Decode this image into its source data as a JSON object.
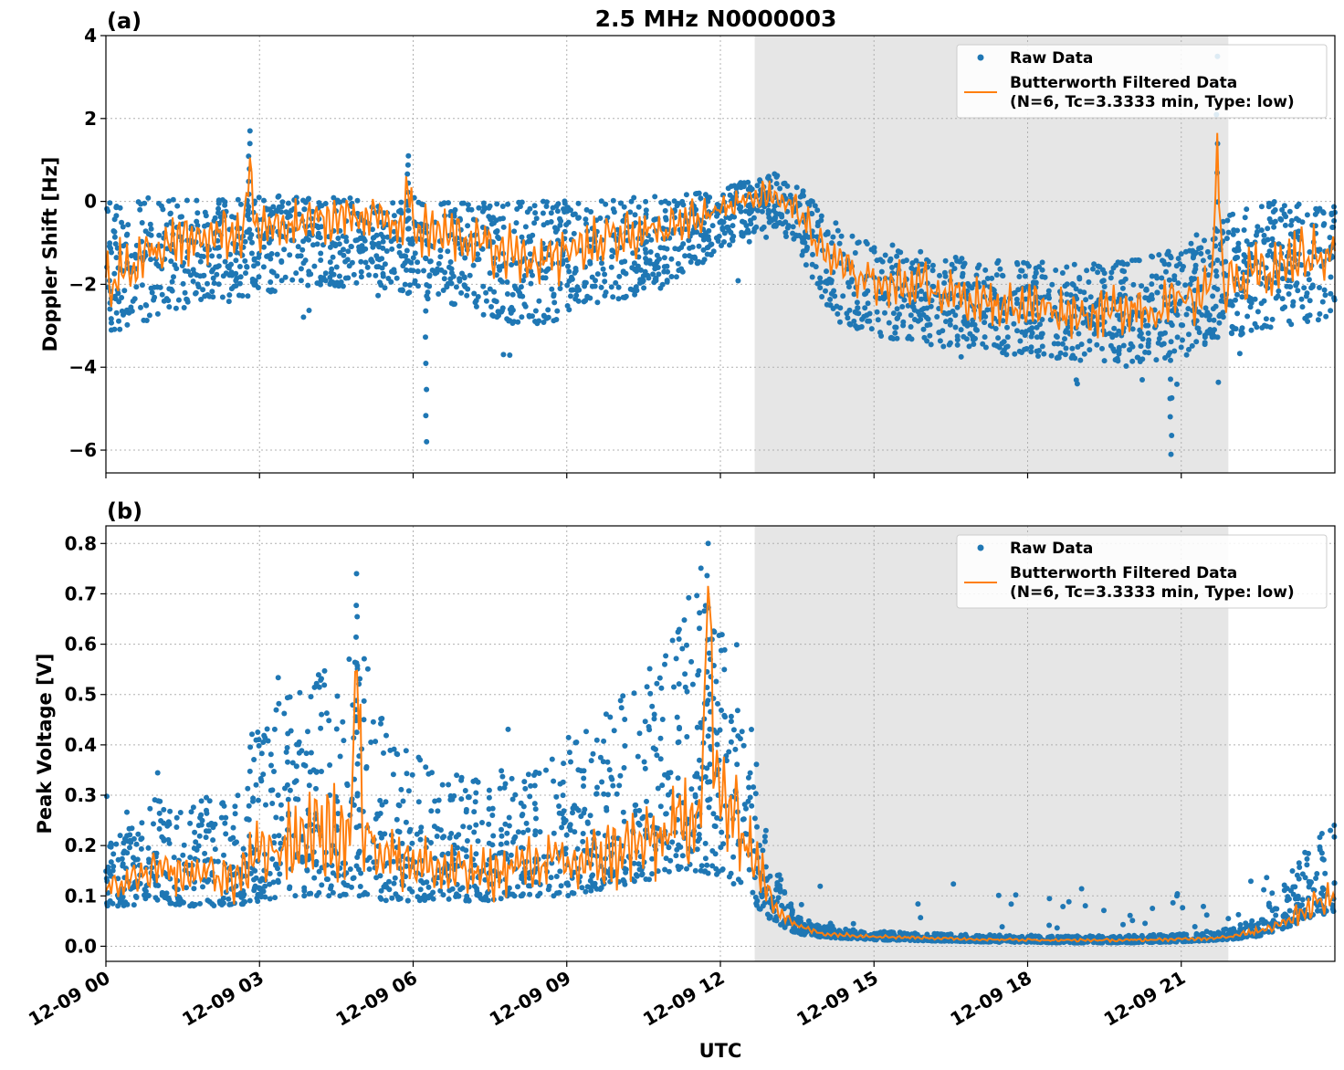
{
  "figure": {
    "title": "2.5 MHz N0000003",
    "xlabel": "UTC",
    "x_tick_labels": [
      "12-09 00",
      "12-09 03",
      "12-09 06",
      "12-09 09",
      "12-09 12",
      "12-09 15",
      "12-09 18",
      "12-09 21"
    ],
    "shaded_region_hours": [
      12.67,
      21.92
    ],
    "colors": {
      "raw": "#1f77b4",
      "filtered": "#ff7f0e",
      "shade": "#e6e6e6"
    }
  },
  "legend": {
    "raw_label": "Raw Data",
    "filtered_label_line1": "Butterworth Filtered Data",
    "filtered_label_line2": "(N=6, Tc=3.3333 min, Type: low)"
  },
  "chart_data": [
    {
      "type": "scatter",
      "panel_label": "(a)",
      "ylabel": "Doppler Shift [Hz]",
      "xlim_hours": [
        0,
        24
      ],
      "ylim": [
        -6.55,
        4.0
      ],
      "yticks": [
        4,
        2,
        0,
        -2,
        -4,
        -6
      ],
      "ytick_labels": [
        "4",
        "2",
        "0",
        "−2",
        "−4",
        "−6"
      ],
      "grid": true,
      "legend_position": "top-right",
      "series": [
        {
          "name": "Butterworth Filtered Data",
          "x_hours": [
            0,
            0.5,
            1,
            1.5,
            2,
            2.5,
            3,
            3.5,
            4,
            4.5,
            5,
            5.5,
            6,
            6.5,
            7,
            7.5,
            8,
            8.5,
            9,
            9.5,
            10,
            10.5,
            11,
            11.5,
            12,
            12.5,
            13,
            13.5,
            14,
            14.5,
            15,
            15.5,
            16,
            16.5,
            17,
            17.5,
            18,
            18.5,
            19,
            19.5,
            20,
            20.5,
            21,
            21.5,
            22,
            22.5,
            23,
            23.5,
            24
          ],
          "y_median": [
            -1.9,
            -1.5,
            -1.2,
            -1.0,
            -0.9,
            -0.8,
            -0.7,
            -0.6,
            -0.5,
            -0.4,
            -0.3,
            -0.5,
            -0.7,
            -0.8,
            -0.9,
            -1.1,
            -1.3,
            -1.4,
            -1.2,
            -1.1,
            -0.9,
            -0.8,
            -0.7,
            -0.3,
            -0.2,
            0.1,
            0.2,
            -0.2,
            -1.2,
            -1.7,
            -1.9,
            -2.0,
            -2.0,
            -2.2,
            -2.4,
            -2.5,
            -2.5,
            -2.6,
            -2.7,
            -2.7,
            -2.5,
            -2.6,
            -2.4,
            -2.2,
            -2.0,
            -1.8,
            -1.5,
            -1.3,
            -1.2
          ],
          "y_lower": [
            -3.2,
            -3.0,
            -2.8,
            -2.6,
            -2.5,
            -2.4,
            -2.3,
            -2.2,
            -2.1,
            -2.1,
            -2.0,
            -2.1,
            -2.3,
            -2.5,
            -2.6,
            -2.8,
            -3.0,
            -3.0,
            -2.8,
            -2.6,
            -2.4,
            -2.2,
            -2.0,
            -1.6,
            -1.2,
            -0.8,
            -0.6,
            -1.1,
            -2.4,
            -3.0,
            -3.2,
            -3.4,
            -3.5,
            -3.5,
            -3.6,
            -3.7,
            -3.7,
            -3.8,
            -3.9,
            -4.0,
            -4.0,
            -3.9,
            -3.8,
            -3.5,
            -3.3,
            -3.1,
            -3.0,
            -2.9,
            -2.8
          ],
          "y_upper": [
            0.05,
            0.05,
            0.1,
            0.1,
            0.1,
            0.1,
            0.15,
            0.15,
            0.1,
            0.1,
            0.1,
            0.1,
            0.1,
            0.05,
            0.05,
            0.0,
            0.0,
            0.05,
            0.05,
            0.05,
            0.1,
            0.1,
            0.15,
            0.2,
            0.3,
            0.5,
            0.7,
            0.4,
            -0.2,
            -0.7,
            -0.9,
            -1.1,
            -1.2,
            -1.3,
            -1.4,
            -1.4,
            -1.4,
            -1.5,
            -1.5,
            -1.5,
            -1.4,
            -1.3,
            -1.1,
            -0.6,
            -0.2,
            0.0,
            0.05,
            0.05,
            0.05
          ],
          "spikes": [
            {
              "x_hours": 2.8,
              "y": 1.7
            },
            {
              "x_hours": 5.9,
              "y": 1.1
            },
            {
              "x_hours": 21.7,
              "y": 3.5
            },
            {
              "x_hours": 6.25,
              "y": -5.8
            },
            {
              "x_hours": 20.8,
              "y": -6.1
            }
          ]
        }
      ]
    },
    {
      "type": "scatter",
      "panel_label": "(b)",
      "ylabel": "Peak Voltage [V]",
      "xlim_hours": [
        0,
        24
      ],
      "ylim": [
        -0.03,
        0.835
      ],
      "yticks": [
        0.8,
        0.7,
        0.6,
        0.5,
        0.4,
        0.3,
        0.2,
        0.1,
        0.0
      ],
      "ytick_labels": [
        "0.8",
        "0.7",
        "0.6",
        "0.5",
        "0.4",
        "0.3",
        "0.2",
        "0.1",
        "0.0"
      ],
      "grid": true,
      "legend_position": "top-right",
      "series": [
        {
          "name": "Butterworth Filtered Data",
          "x_hours": [
            0,
            0.5,
            1,
            1.5,
            2,
            2.5,
            3,
            3.5,
            4,
            4.5,
            5,
            5.5,
            6,
            6.5,
            7,
            7.5,
            8,
            8.5,
            9,
            9.5,
            10,
            10.5,
            11,
            11.5,
            12,
            12.5,
            13,
            13.5,
            14,
            14.5,
            15,
            15.5,
            16,
            16.5,
            17,
            17.5,
            18,
            18.5,
            19,
            19.5,
            20,
            20.5,
            21,
            21.5,
            22,
            22.5,
            23,
            23.5,
            24
          ],
          "y_median": [
            0.11,
            0.13,
            0.15,
            0.14,
            0.15,
            0.13,
            0.18,
            0.2,
            0.23,
            0.22,
            0.24,
            0.19,
            0.17,
            0.15,
            0.15,
            0.14,
            0.16,
            0.17,
            0.16,
            0.17,
            0.19,
            0.2,
            0.22,
            0.28,
            0.3,
            0.22,
            0.09,
            0.04,
            0.025,
            0.022,
            0.02,
            0.018,
            0.017,
            0.015,
            0.014,
            0.013,
            0.013,
            0.012,
            0.012,
            0.012,
            0.012,
            0.013,
            0.014,
            0.016,
            0.02,
            0.03,
            0.05,
            0.08,
            0.1
          ],
          "y_lower": [
            0.08,
            0.08,
            0.09,
            0.08,
            0.08,
            0.08,
            0.09,
            0.1,
            0.1,
            0.1,
            0.1,
            0.09,
            0.09,
            0.09,
            0.09,
            0.09,
            0.1,
            0.1,
            0.1,
            0.11,
            0.12,
            0.13,
            0.14,
            0.15,
            0.14,
            0.1,
            0.05,
            0.025,
            0.018,
            0.015,
            0.013,
            0.012,
            0.011,
            0.01,
            0.009,
            0.008,
            0.008,
            0.007,
            0.007,
            0.007,
            0.007,
            0.008,
            0.009,
            0.011,
            0.014,
            0.02,
            0.035,
            0.055,
            0.07
          ],
          "y_upper": [
            0.2,
            0.24,
            0.3,
            0.28,
            0.3,
            0.3,
            0.45,
            0.5,
            0.55,
            0.58,
            0.6,
            0.42,
            0.38,
            0.36,
            0.34,
            0.34,
            0.36,
            0.38,
            0.4,
            0.42,
            0.5,
            0.55,
            0.6,
            0.7,
            0.66,
            0.5,
            0.18,
            0.06,
            0.04,
            0.035,
            0.03,
            0.028,
            0.026,
            0.024,
            0.023,
            0.022,
            0.022,
            0.021,
            0.021,
            0.021,
            0.022,
            0.023,
            0.025,
            0.03,
            0.035,
            0.06,
            0.12,
            0.2,
            0.26
          ],
          "spikes": [
            {
              "x_hours": 4.9,
              "y": 0.74
            },
            {
              "x_hours": 11.75,
              "y": 0.8
            },
            {
              "x_hours": 11.8,
              "y": 0.57
            }
          ]
        }
      ]
    }
  ]
}
